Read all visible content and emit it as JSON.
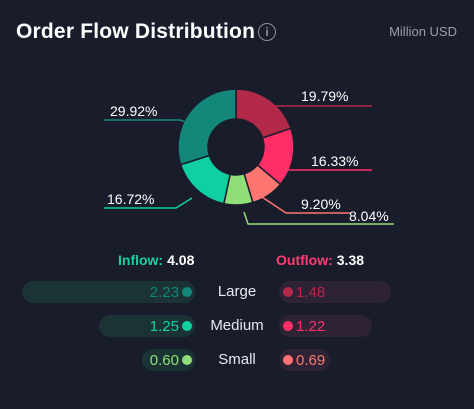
{
  "header": {
    "title": "Order Flow Distribution",
    "info_icon_glyph": "i",
    "unit": "Million USD"
  },
  "colors": {
    "large_in": "#13877a",
    "medium_in": "#10d0a2",
    "small_in": "#8fde78",
    "large_out": "#b22a48",
    "medium_out": "#ff2e68",
    "small_out": "#ff7670"
  },
  "chart_data": {
    "type": "pie",
    "variant": "donut",
    "slices": [
      {
        "category": "Large outflow",
        "value": 19.79,
        "label": "19.79%"
      },
      {
        "category": "Medium outflow",
        "value": 16.33,
        "label": "16.33%"
      },
      {
        "category": "Small outflow",
        "value": 9.2,
        "label": "9.20%"
      },
      {
        "category": "Small inflow",
        "value": 8.04,
        "label": "8.04%"
      },
      {
        "category": "Medium inflow",
        "value": 16.72,
        "label": "16.72%"
      },
      {
        "category": "Large inflow",
        "value": 29.92,
        "label": "29.92%"
      }
    ]
  },
  "summary": {
    "inflow_label": "Inflow:",
    "inflow_total": "4.08",
    "outflow_label": "Outflow:",
    "outflow_total": "3.38",
    "rows": [
      {
        "name": "Large",
        "inflow": "2.23",
        "outflow": "1.48"
      },
      {
        "name": "Medium",
        "inflow": "1.25",
        "outflow": "1.22"
      },
      {
        "name": "Small",
        "inflow": "0.60",
        "outflow": "0.69"
      }
    ]
  }
}
